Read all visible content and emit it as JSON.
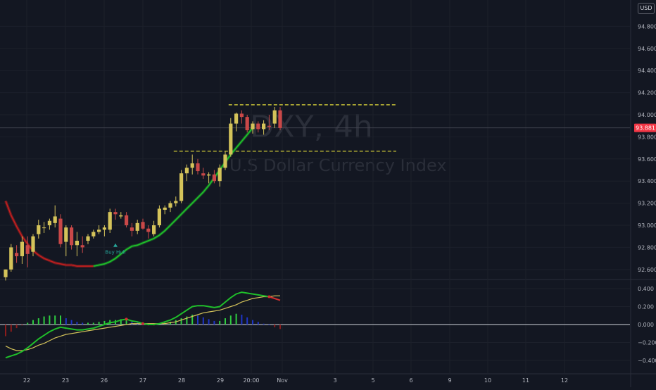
{
  "toolbar": {
    "currency_label": "USD"
  },
  "watermark": {
    "symbol": "DXY, 4h",
    "name": "U.S Dollar Currency Index"
  },
  "chart_data": [
    {
      "type": "candlestick",
      "title": "",
      "y_ticks": [
        92.6,
        92.8,
        93.0,
        93.2,
        93.4,
        93.6,
        93.8,
        94.0,
        94.2,
        94.4,
        94.6,
        94.8
      ],
      "y_tick_labels": [
        "92.600",
        "92.800",
        "93.000",
        "93.200",
        "93.400",
        "93.600",
        "93.800",
        "94.000",
        "94.200",
        "94.400",
        "94.600",
        "94.800"
      ],
      "ylim": [
        92.5,
        95.0
      ],
      "x_tick_labels": [
        "22",
        "23",
        "26",
        "27",
        "28",
        "29",
        "20:00",
        "Nov",
        "3",
        "5",
        "6",
        "9",
        "10",
        "11",
        "12"
      ],
      "current_price": 93.881,
      "current_price_label": "93.881",
      "colors": {
        "up": "#d4c35a",
        "down": "#c94848",
        "hull_up": "#1fbf2a",
        "hull_down": "#c21f1f",
        "level_line": "#e8e13a"
      },
      "candles": [
        [
          92.53,
          92.6,
          92.5,
          92.6
        ],
        [
          92.6,
          92.83,
          92.58,
          92.8
        ],
        [
          92.75,
          92.82,
          92.66,
          92.72
        ],
        [
          92.72,
          92.9,
          92.65,
          92.85
        ],
        [
          92.82,
          92.9,
          92.62,
          92.74
        ],
        [
          92.76,
          92.92,
          92.72,
          92.9
        ],
        [
          92.92,
          93.05,
          92.88,
          93.0
        ],
        [
          92.98,
          93.03,
          92.93,
          92.98
        ],
        [
          93.0,
          93.06,
          92.96,
          93.04
        ],
        [
          93.02,
          93.18,
          92.98,
          93.08
        ],
        [
          93.06,
          93.1,
          92.8,
          92.83
        ],
        [
          92.85,
          93.0,
          92.72,
          92.98
        ],
        [
          92.98,
          93.0,
          92.78,
          92.82
        ],
        [
          92.82,
          92.94,
          92.72,
          92.86
        ],
        [
          92.82,
          92.9,
          92.75,
          92.8
        ],
        [
          92.86,
          92.92,
          92.83,
          92.9
        ],
        [
          92.9,
          92.96,
          92.88,
          92.94
        ],
        [
          92.94,
          93.0,
          92.92,
          92.96
        ],
        [
          92.96,
          93.0,
          92.9,
          92.98
        ],
        [
          92.96,
          93.15,
          92.93,
          93.12
        ],
        [
          93.12,
          93.15,
          93.05,
          93.1
        ],
        [
          93.08,
          93.12,
          93.06,
          93.09
        ],
        [
          93.09,
          93.12,
          92.98,
          93.0
        ],
        [
          92.98,
          93.02,
          92.9,
          92.95
        ],
        [
          92.95,
          93.05,
          92.92,
          93.02
        ],
        [
          93.03,
          93.06,
          92.96,
          92.97
        ],
        [
          92.97,
          93.0,
          92.88,
          92.94
        ],
        [
          92.92,
          93.04,
          92.9,
          93.0
        ],
        [
          93.0,
          93.18,
          92.98,
          93.15
        ],
        [
          93.14,
          93.18,
          93.1,
          93.16
        ],
        [
          93.16,
          93.22,
          93.12,
          93.2
        ],
        [
          93.2,
          93.26,
          93.17,
          93.22
        ],
        [
          93.22,
          93.5,
          93.2,
          93.47
        ],
        [
          93.47,
          93.55,
          93.4,
          93.52
        ],
        [
          93.52,
          93.64,
          93.46,
          93.56
        ],
        [
          93.56,
          93.6,
          93.46,
          93.49
        ],
        [
          93.47,
          93.52,
          93.42,
          93.45
        ],
        [
          93.45,
          93.48,
          93.38,
          93.46
        ],
        [
          93.46,
          93.5,
          93.38,
          93.4
        ],
        [
          93.4,
          93.55,
          93.35,
          93.52
        ],
        [
          93.52,
          93.67,
          93.5,
          93.64
        ],
        [
          93.64,
          93.97,
          93.62,
          93.92
        ],
        [
          93.92,
          94.02,
          93.85,
          94.01
        ],
        [
          94.01,
          94.04,
          93.92,
          93.98
        ],
        [
          93.98,
          94.0,
          93.84,
          93.86
        ],
        [
          93.87,
          93.94,
          93.83,
          93.92
        ],
        [
          93.92,
          93.94,
          93.84,
          93.87
        ],
        [
          93.87,
          93.95,
          93.82,
          93.92
        ],
        [
          93.9,
          94.0,
          93.86,
          93.89
        ],
        [
          93.92,
          94.07,
          93.88,
          94.04
        ],
        [
          94.04,
          94.07,
          93.86,
          93.88
        ]
      ],
      "hull_ma": [
        93.22,
        93.09,
        92.99,
        92.9,
        92.83,
        92.77,
        92.73,
        92.7,
        92.68,
        92.66,
        92.65,
        92.64,
        92.64,
        92.63,
        92.63,
        92.63,
        92.63,
        92.64,
        92.65,
        92.67,
        92.7,
        92.74,
        92.78,
        92.81,
        92.82,
        92.84,
        92.86,
        92.88,
        92.91,
        92.95,
        93.0,
        93.05,
        93.1,
        93.15,
        93.2,
        93.25,
        93.3,
        93.36,
        93.43,
        93.5,
        93.57,
        93.64,
        93.7,
        93.76,
        93.82,
        93.88
      ],
      "hull_ma_start_index": 0,
      "hull_ma_down_until": 16,
      "levels": [
        {
          "value": 94.09,
          "from_index": 41,
          "to_x_label": "5"
        },
        {
          "value": 93.67,
          "from_index": 31,
          "to_x_label": "5"
        }
      ],
      "annotations": [
        {
          "text": "Buy Hull",
          "index": 20,
          "value": 92.83
        }
      ]
    },
    {
      "type": "macd",
      "y_ticks": [
        0.4,
        0.2,
        0.0,
        -0.2,
        -0.4
      ],
      "y_tick_labels": [
        "0.400",
        "0.200",
        "0.000",
        "−0.200",
        "−0.400"
      ],
      "ylim": [
        -0.5,
        0.45
      ],
      "colors": {
        "macd": "#1fbf2a",
        "macd_down": "#d32f2f",
        "signal": "#d4c35a",
        "hist_up": "#2ecc40",
        "hist_down": "#1e35c8",
        "hist_neg": "#8b1c1c",
        "zero": "#d1d4dc"
      },
      "macd": [
        -0.37,
        -0.35,
        -0.33,
        -0.3,
        -0.26,
        -0.21,
        -0.16,
        -0.12,
        -0.08,
        -0.05,
        -0.03,
        -0.04,
        -0.05,
        -0.06,
        -0.06,
        -0.05,
        -0.04,
        -0.02,
        0.0,
        0.02,
        0.03,
        0.05,
        0.06,
        0.04,
        0.03,
        0.01,
        0.0,
        0.0,
        0.01,
        0.03,
        0.05,
        0.08,
        0.12,
        0.16,
        0.2,
        0.21,
        0.21,
        0.2,
        0.19,
        0.2,
        0.25,
        0.3,
        0.34,
        0.36,
        0.35,
        0.34,
        0.33,
        0.32,
        0.31,
        0.29,
        0.27
      ],
      "signal": [
        -0.24,
        -0.27,
        -0.29,
        -0.29,
        -0.28,
        -0.26,
        -0.23,
        -0.21,
        -0.18,
        -0.15,
        -0.13,
        -0.11,
        -0.1,
        -0.09,
        -0.08,
        -0.07,
        -0.06,
        -0.05,
        -0.04,
        -0.03,
        -0.02,
        -0.01,
        0.0,
        0.01,
        0.01,
        0.01,
        0.01,
        0.01,
        0.01,
        0.01,
        0.02,
        0.03,
        0.05,
        0.07,
        0.09,
        0.11,
        0.13,
        0.14,
        0.15,
        0.16,
        0.18,
        0.2,
        0.22,
        0.25,
        0.27,
        0.29,
        0.3,
        0.31,
        0.31,
        0.32,
        0.32
      ],
      "macd_down_from": 48,
      "histogram": [
        -0.13,
        -0.08,
        -0.04,
        -0.01,
        0.02,
        0.05,
        0.07,
        0.09,
        0.1,
        0.1,
        0.1,
        0.07,
        0.05,
        0.03,
        0.02,
        0.02,
        0.02,
        0.03,
        0.04,
        0.05,
        0.05,
        0.06,
        0.06,
        0.03,
        0.02,
        0.0,
        -0.01,
        -0.01,
        0.0,
        0.02,
        0.03,
        0.05,
        0.07,
        0.09,
        0.11,
        0.1,
        0.08,
        0.06,
        0.04,
        0.04,
        0.07,
        0.1,
        0.12,
        0.11,
        0.08,
        0.05,
        0.03,
        0.01,
        0.0,
        -0.03,
        -0.05
      ]
    }
  ]
}
